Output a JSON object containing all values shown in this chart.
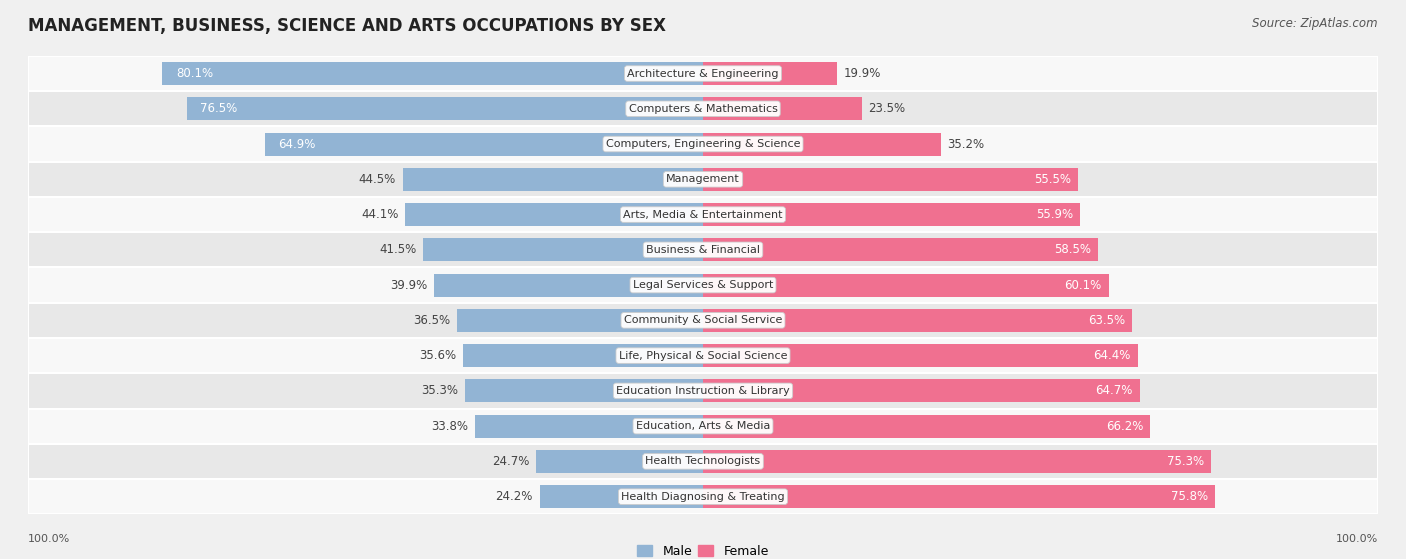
{
  "title": "MANAGEMENT, BUSINESS, SCIENCE AND ARTS OCCUPATIONS BY SEX",
  "source": "Source: ZipAtlas.com",
  "categories": [
    "Architecture & Engineering",
    "Computers & Mathematics",
    "Computers, Engineering & Science",
    "Management",
    "Arts, Media & Entertainment",
    "Business & Financial",
    "Legal Services & Support",
    "Community & Social Service",
    "Life, Physical & Social Science",
    "Education Instruction & Library",
    "Education, Arts & Media",
    "Health Technologists",
    "Health Diagnosing & Treating"
  ],
  "male_pct": [
    80.1,
    76.5,
    64.9,
    44.5,
    44.1,
    41.5,
    39.9,
    36.5,
    35.6,
    35.3,
    33.8,
    24.7,
    24.2
  ],
  "female_pct": [
    19.9,
    23.5,
    35.2,
    55.5,
    55.9,
    58.5,
    60.1,
    63.5,
    64.4,
    64.7,
    66.2,
    75.3,
    75.8
  ],
  "male_color": "#92b4d4",
  "female_color": "#f07090",
  "bg_color": "#f0f0f0",
  "row_bg_light": "#f8f8f8",
  "row_bg_dark": "#e8e8e8",
  "title_fontsize": 12,
  "source_fontsize": 8.5,
  "bar_label_fontsize": 8.5,
  "cat_label_fontsize": 8.0,
  "bar_height": 0.65
}
